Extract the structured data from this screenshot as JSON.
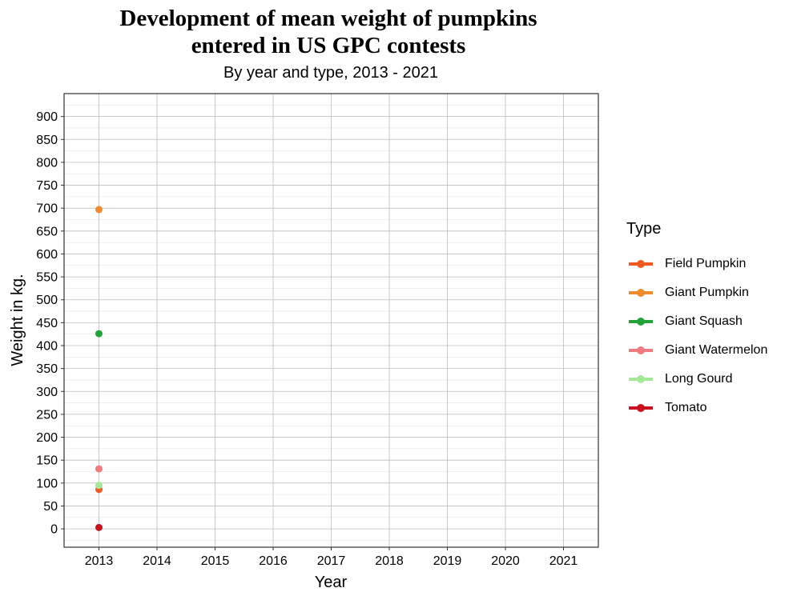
{
  "chart_data": {
    "type": "line",
    "title_line1": "Development of mean weight of pumpkins",
    "title_line2": "entered in US GPC contests",
    "subtitle": "By year and type, 2013 - 2021",
    "xlabel": "Year",
    "ylabel": "Weight in kg.",
    "x_ticks": [
      2013,
      2014,
      2015,
      2016,
      2017,
      2018,
      2019,
      2020,
      2021
    ],
    "y_ticks": [
      0,
      50,
      100,
      150,
      200,
      250,
      300,
      350,
      400,
      450,
      500,
      550,
      600,
      650,
      700,
      750,
      800,
      850,
      900
    ],
    "xlim": [
      2012.4,
      2021.6
    ],
    "ylim": [
      -40,
      950
    ],
    "grid": true,
    "legend_title": "Type",
    "legend_position": "right",
    "series": [
      {
        "name": "Field Pumpkin",
        "color": "#f05a1e",
        "x": [
          2013
        ],
        "y": [
          86
        ]
      },
      {
        "name": "Giant Pumpkin",
        "color": "#f08c2d",
        "x": [
          2013
        ],
        "y": [
          697
        ]
      },
      {
        "name": "Giant Squash",
        "color": "#22a33a",
        "x": [
          2013
        ],
        "y": [
          426
        ]
      },
      {
        "name": "Giant Watermelon",
        "color": "#f07c80",
        "x": [
          2013
        ],
        "y": [
          131
        ]
      },
      {
        "name": "Long Gourd",
        "color": "#a6e89a",
        "x": [
          2013
        ],
        "y": [
          95
        ]
      },
      {
        "name": "Tomato",
        "color": "#c8101e",
        "x": [
          2013
        ],
        "y": [
          3
        ]
      }
    ]
  }
}
